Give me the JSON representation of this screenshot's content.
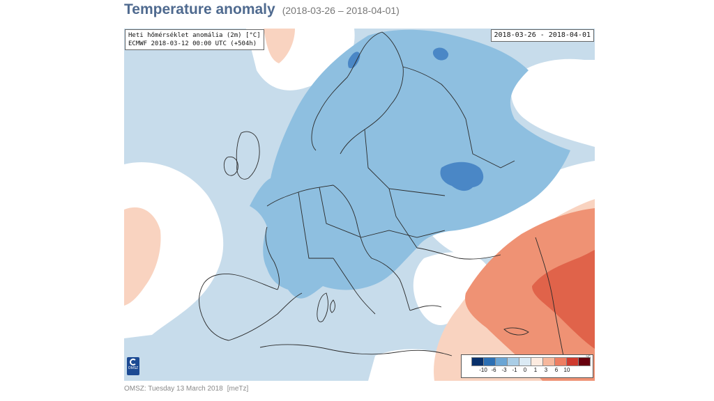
{
  "header": {
    "title": "Temperature anomaly",
    "date_range": "(2018-03-26 – 2018-04-01)"
  },
  "map": {
    "info_line1": "Heti hőmérséklet anomália (2m) [°C]",
    "info_line2": "ECMWF 2018-03-12 00:00 UTC (+504h)",
    "date_box": "2018-03-26 - 2018-04-01",
    "logo_text": "OMSZ",
    "legend": {
      "unit": "°C",
      "ticks": [
        "-10",
        "-6",
        "-3",
        "-1",
        "0",
        "1",
        "3",
        "6",
        "10"
      ],
      "colors": [
        "#08306b",
        "#2c6fb3",
        "#6aa5d4",
        "#a9cde6",
        "#dbeaf4",
        "#fdebe0",
        "#f6b79c",
        "#ee7e62",
        "#cf3a2e",
        "#67000d"
      ]
    },
    "colors": {
      "cold_1": "#c7dceb",
      "cold_2": "#8ebfe0",
      "cold_3": "#4a87c6",
      "neutral": "#ffffff",
      "warm_1": "#f9d3c0",
      "warm_2": "#ef9274",
      "warm_3": "#e0634a"
    }
  },
  "footer": {
    "source": "OMSZ: Tuesday 13 March 2018",
    "tag": "[meTz]"
  }
}
